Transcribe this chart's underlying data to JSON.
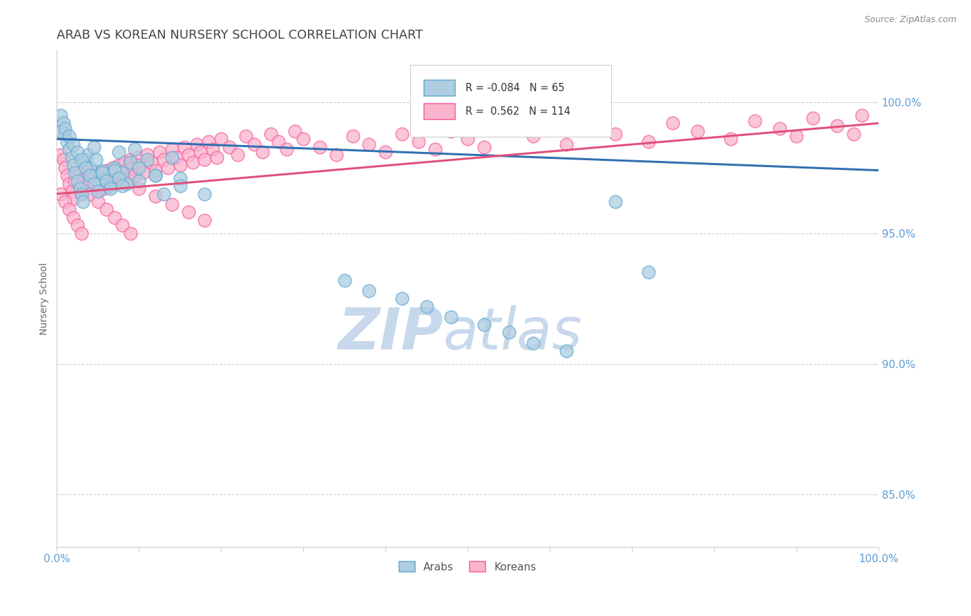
{
  "title": "ARAB VS KOREAN NURSERY SCHOOL CORRELATION CHART",
  "source": "Source: ZipAtlas.com",
  "ylabel": "Nursery School",
  "ylabel_right_ticks": [
    85.0,
    90.0,
    95.0,
    100.0
  ],
  "ylim": [
    83.0,
    102.0
  ],
  "xlim": [
    0.0,
    1.0
  ],
  "legend_arab_r": "-0.084",
  "legend_arab_n": "65",
  "legend_korean_r": "0.562",
  "legend_korean_n": "114",
  "arab_color": "#6baed6",
  "arab_color_fill": "#aecde0",
  "korean_color": "#f768a1",
  "korean_color_fill": "#f9b4ce",
  "arab_line_color": "#3070b0",
  "korean_line_color": "#e0507a",
  "watermark_color_zip": "#c8d8ec",
  "watermark_color_atlas": "#c8d8ec",
  "title_color": "#444444",
  "axis_tick_color": "#5b9bd5",
  "grid_color": "#cccccc",
  "background_color": "#ffffff",
  "arab_x": [
    0.005,
    0.008,
    0.01,
    0.012,
    0.015,
    0.018,
    0.02,
    0.022,
    0.025,
    0.028,
    0.03,
    0.032,
    0.035,
    0.038,
    0.04,
    0.042,
    0.045,
    0.048,
    0.05,
    0.055,
    0.06,
    0.065,
    0.07,
    0.075,
    0.08,
    0.085,
    0.09,
    0.095,
    0.1,
    0.11,
    0.12,
    0.13,
    0.14,
    0.15,
    0.005,
    0.01,
    0.015,
    0.02,
    0.025,
    0.03,
    0.035,
    0.04,
    0.045,
    0.05,
    0.055,
    0.06,
    0.065,
    0.07,
    0.075,
    0.08,
    0.1,
    0.12,
    0.15,
    0.18,
    0.35,
    0.38,
    0.42,
    0.45,
    0.48,
    0.52,
    0.55,
    0.58,
    0.62,
    0.68,
    0.72
  ],
  "arab_y": [
    99.5,
    99.2,
    98.8,
    98.5,
    98.2,
    97.9,
    97.6,
    97.3,
    97.0,
    96.7,
    96.5,
    96.2,
    97.8,
    98.0,
    97.5,
    97.2,
    98.3,
    97.8,
    97.0,
    97.4,
    97.1,
    96.8,
    97.5,
    98.1,
    97.3,
    96.9,
    97.7,
    98.2,
    97.0,
    97.8,
    97.2,
    96.5,
    97.9,
    97.1,
    98.9,
    99.0,
    98.7,
    98.4,
    98.1,
    97.8,
    97.5,
    97.2,
    96.9,
    96.6,
    97.3,
    97.0,
    96.7,
    97.4,
    97.1,
    96.8,
    97.5,
    97.2,
    96.8,
    96.5,
    93.2,
    92.8,
    92.5,
    92.2,
    91.8,
    91.5,
    91.2,
    90.8,
    90.5,
    96.2,
    93.5
  ],
  "korean_x": [
    0.005,
    0.008,
    0.01,
    0.012,
    0.015,
    0.018,
    0.02,
    0.022,
    0.025,
    0.028,
    0.03,
    0.032,
    0.035,
    0.038,
    0.04,
    0.042,
    0.045,
    0.048,
    0.05,
    0.052,
    0.055,
    0.058,
    0.06,
    0.062,
    0.065,
    0.068,
    0.07,
    0.072,
    0.075,
    0.078,
    0.08,
    0.082,
    0.085,
    0.088,
    0.09,
    0.092,
    0.095,
    0.098,
    0.1,
    0.105,
    0.11,
    0.115,
    0.12,
    0.125,
    0.13,
    0.135,
    0.14,
    0.145,
    0.15,
    0.155,
    0.16,
    0.165,
    0.17,
    0.175,
    0.18,
    0.185,
    0.19,
    0.195,
    0.2,
    0.21,
    0.22,
    0.23,
    0.24,
    0.25,
    0.26,
    0.27,
    0.28,
    0.29,
    0.3,
    0.32,
    0.34,
    0.36,
    0.38,
    0.4,
    0.42,
    0.44,
    0.46,
    0.48,
    0.5,
    0.52,
    0.55,
    0.58,
    0.62,
    0.65,
    0.68,
    0.72,
    0.75,
    0.78,
    0.82,
    0.85,
    0.88,
    0.9,
    0.92,
    0.95,
    0.97,
    0.98,
    0.005,
    0.01,
    0.015,
    0.02,
    0.025,
    0.03,
    0.035,
    0.04,
    0.05,
    0.06,
    0.07,
    0.08,
    0.09,
    0.1,
    0.12,
    0.14,
    0.16,
    0.18
  ],
  "korean_y": [
    98.0,
    97.8,
    97.5,
    97.2,
    96.9,
    96.6,
    96.3,
    97.0,
    97.3,
    96.8,
    96.5,
    97.1,
    96.8,
    97.4,
    97.0,
    96.7,
    97.2,
    96.9,
    96.6,
    97.3,
    97.0,
    96.7,
    97.4,
    97.1,
    96.8,
    97.5,
    97.2,
    96.9,
    97.6,
    97.3,
    97.0,
    97.7,
    97.4,
    97.1,
    97.8,
    97.5,
    97.2,
    97.9,
    97.6,
    97.3,
    98.0,
    97.7,
    97.4,
    98.1,
    97.8,
    97.5,
    98.2,
    97.9,
    97.6,
    98.3,
    98.0,
    97.7,
    98.4,
    98.1,
    97.8,
    98.5,
    98.2,
    97.9,
    98.6,
    98.3,
    98.0,
    98.7,
    98.4,
    98.1,
    98.8,
    98.5,
    98.2,
    98.9,
    98.6,
    98.3,
    98.0,
    98.7,
    98.4,
    98.1,
    98.8,
    98.5,
    98.2,
    98.9,
    98.6,
    98.3,
    99.0,
    98.7,
    98.4,
    99.1,
    98.8,
    98.5,
    99.2,
    98.9,
    98.6,
    99.3,
    99.0,
    98.7,
    99.4,
    99.1,
    98.8,
    99.5,
    96.5,
    96.2,
    95.9,
    95.6,
    95.3,
    95.0,
    96.8,
    96.5,
    96.2,
    95.9,
    95.6,
    95.3,
    95.0,
    96.7,
    96.4,
    96.1,
    95.8,
    95.5
  ]
}
